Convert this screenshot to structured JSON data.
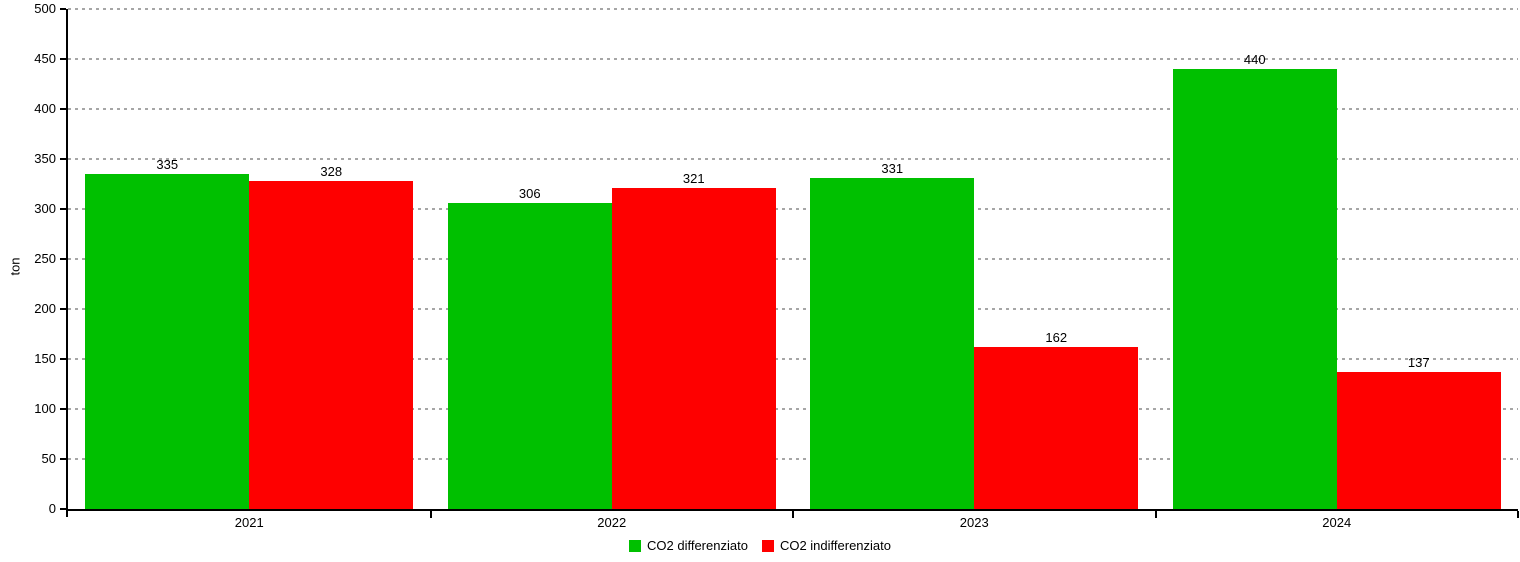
{
  "chart_data": {
    "type": "bar",
    "title": "",
    "categories": [
      "2021",
      "2022",
      "2023",
      "2024"
    ],
    "series": [
      {
        "name": "CO2 differenziato",
        "color": "#00c000",
        "values": [
          335,
          306,
          331,
          440
        ]
      },
      {
        "name": "CO2 indifferenziato",
        "color": "#fe0000",
        "values": [
          328,
          321,
          162,
          137
        ]
      }
    ],
    "xlabel": "",
    "ylabel": "ton",
    "ylim": [
      0,
      500
    ],
    "yticks": [
      0,
      50,
      100,
      150,
      200,
      250,
      300,
      350,
      400,
      450,
      500
    ],
    "grid": "horizontal-dashed",
    "gridline_color": "#a6a6a6",
    "axis_color": "#000000",
    "bar_value_labels": true,
    "legend_position": "bottom-center",
    "background_color": "#ffffff"
  }
}
